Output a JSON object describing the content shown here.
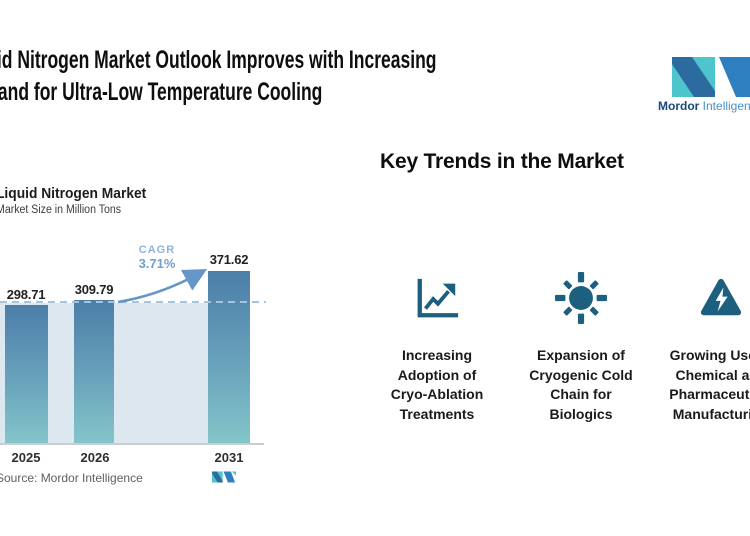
{
  "header": {
    "title_line1": "Liquid Nitrogen Market Outlook Improves with Increasing",
    "title_line2": "Demand for Ultra-Low Temperature Cooling"
  },
  "brand": {
    "wordmark_bold": "Mordor",
    "wordmark_light": "Intelligence",
    "teal": "#4EC4CC",
    "blue": "#2E7FC0",
    "navy": "#2C6BA0"
  },
  "chart_data": {
    "type": "bar",
    "title": "Liquid Nitrogen Market",
    "subtitle": "Market Size in Million Tons",
    "categories": [
      "2025",
      "2026",
      "2031"
    ],
    "values": [
      298.71,
      309.79,
      371.62
    ],
    "value_labels": [
      "298.71",
      "309.79",
      "371.62"
    ],
    "cagr_label": "CAGR",
    "cagr_value": "3.71%",
    "source": "Source: Mordor Intelligence",
    "ylabel": "Million Tons",
    "ylim": [
      0,
      400
    ],
    "grid": false,
    "baseline_dashed_at": 298.71,
    "bar_gradient_top": "#4C7EA8",
    "bar_gradient_bottom": "#83C5C9",
    "shaded_region_color": "#DCE7F0",
    "dashed_line_color": "#A6C4DF",
    "arrow_color": "#6496C6"
  },
  "trends": {
    "heading": "Key Trends in the Market",
    "icon_color": "#1D5F7F",
    "items": [
      {
        "icon": "trending-up-chart-icon",
        "label": "Increasing\nAdoption of\nCryo-Ablation\nTreatments"
      },
      {
        "icon": "sun-cryogenic-icon",
        "label": "Expansion of\nCryogenic Cold\nChain for\nBiologics"
      },
      {
        "icon": "hazard-lightning-icon",
        "label": "Growing Use in\nChemical and\nPharmaceutical\nManufacturing"
      }
    ]
  }
}
